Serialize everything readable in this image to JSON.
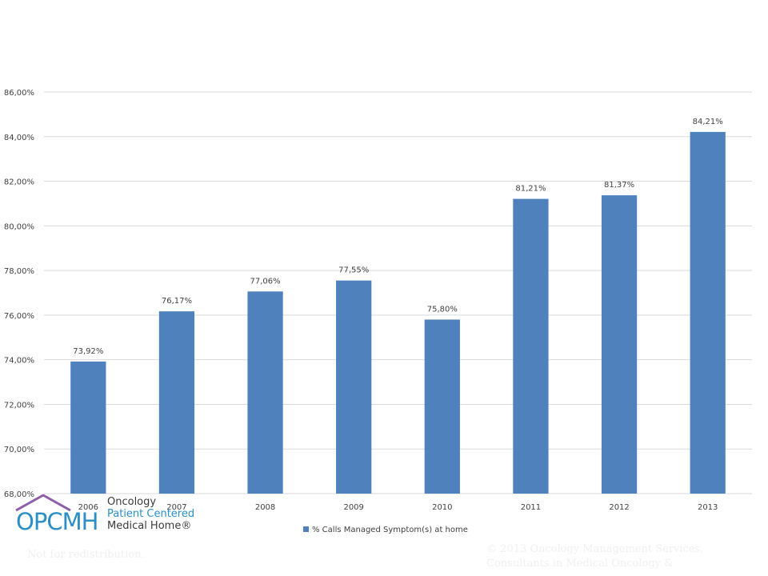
{
  "chart_data": {
    "type": "bar",
    "categories": [
      "2006",
      "2007",
      "2008",
      "2009",
      "2010",
      "2011",
      "2012",
      "2013"
    ],
    "series": [
      {
        "name": "% Calls Managed Symptom(s) at home",
        "values": [
          73.92,
          76.17,
          77.06,
          77.55,
          75.8,
          81.21,
          81.37,
          84.21
        ],
        "labels": [
          "73,92%",
          "76,17%",
          "77,06%",
          "77,55%",
          "75,80%",
          "81,21%",
          "81,37%",
          "84,21%"
        ]
      }
    ],
    "ylim": [
      68,
      86
    ],
    "yticks": [
      68,
      70,
      72,
      74,
      76,
      78,
      80,
      82,
      84,
      86
    ],
    "ytick_labels": [
      "68,00%",
      "70,00%",
      "72,00%",
      "74,00%",
      "76,00%",
      "78,00%",
      "80,00%",
      "82,00%",
      "84,00%",
      "86,00%"
    ],
    "grid": true,
    "legend_position": "bottom",
    "colors": {
      "bar": "#4f81bd",
      "grid": "#d9d9d9",
      "text": "#404040"
    }
  },
  "logo": {
    "mark": "OPCMH",
    "lines": [
      "Oncology",
      "Patient Centered",
      "Medical Home®"
    ],
    "colors": {
      "primary": "#2b8ec4",
      "roof": "#8e5fa8"
    }
  },
  "footer": {
    "left": "Not for redistribution.",
    "right": "© 2013 Oncology Management Services, Consultants in Medical Oncology &"
  }
}
